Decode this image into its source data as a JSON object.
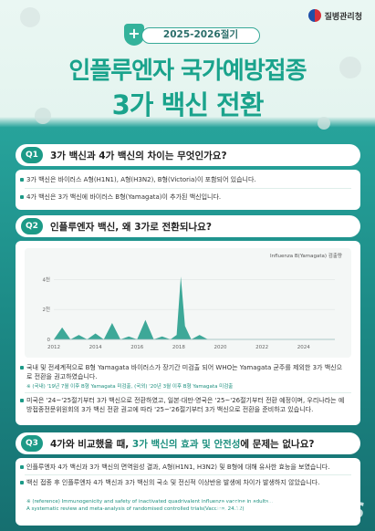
{
  "header": {
    "logo_text": "질병관리청",
    "season": "2025-2026절기",
    "title_line1": "인플루엔자 국가예방접종",
    "title_line2": "3가 백신 전환"
  },
  "q1": {
    "badge": "Q1",
    "question": "3가 백신과 4가 백신의 차이는 무엇인가요?",
    "bullets": [
      "3가 백신은 바이러스 A형(H1N1), A형(H3N2), B형(Victoria)이 포함되어 있습니다.",
      "4가 백신은 3가 백신에 바이러스 B형(Yamagata)이 추가된 백신입니다."
    ]
  },
  "q2": {
    "badge": "Q2",
    "question": "인플루엔자 백신, 왜 3가로 전환되나요?",
    "bullets": [
      "국내 및 전세계적으로 B형 Yamagata 바이러스가 장기간 미검출 되어 WHO는 Yamagata 균주를 제외한 3가 백신으로 전환을 권고하였습니다.",
      "미국은 '24~'25절기부터 3가 백신으로 전환하였고, 일본·대만·영국은 '25~'26절기부터 전환 예정이며, 우리나라는 예방접종전문위원회의 3가 백신 전환 권고에 따라 '25~'26절기부터 3가 백신으로 전환을 준비하고 있습니다."
    ],
    "note": "※ (국내) '19년 7월 이후 B형 Yamagata 미검출, (국외) '20년 3월 이후 B형 Yamagata 미검출"
  },
  "q3": {
    "badge": "Q3",
    "question_pre": "4가와 비교했을 때, ",
    "question_accent": "3가 백신의 효과 및 안전성",
    "question_post": "에 문제는 없나요?",
    "bullets": [
      "인플루엔자 4가 백신과 3가 백신의 면역원성 결과, A형(H1N1, H3N2) 및 B형에 대해 유사한 효능을 보였습니다.",
      "백신 접종 후 인플루엔자 4가 백신과 3가 백신의 국소 및 전신적 이상반응 발생에 차이가 발생하지 않았습니다."
    ],
    "note_line1": "※ (reference) Immunogenicity and safety of inactivated quadrivalent influenza vaccine in adults...",
    "note_line2": "A systematic review and meta-analysis of randomised controlled trials(Vaccine, 24.12)"
  },
  "chart_data": {
    "type": "area",
    "title": "",
    "legend": "Influenza B(Yamagata) 검출량",
    "xlabel": "",
    "ylabel": "",
    "x_ticks": [
      "2012",
      "2014",
      "2016",
      "2018",
      "2020",
      "2022",
      "2024"
    ],
    "y_ticks": [
      "0",
      "2천",
      "4천"
    ],
    "ylim": [
      0,
      5000
    ],
    "xlim": [
      2012,
      2025.5
    ],
    "color": "#1c9a87",
    "x": [
      2012.0,
      2012.4,
      2012.8,
      2013.2,
      2013.6,
      2014.0,
      2014.4,
      2014.8,
      2015.2,
      2015.6,
      2016.0,
      2016.4,
      2016.8,
      2017.2,
      2017.6,
      2017.9,
      2018.1,
      2018.3,
      2018.6,
      2019.0,
      2019.4,
      2019.6,
      2020.0,
      2024.9
    ],
    "values": [
      0,
      800,
      0,
      300,
      0,
      400,
      0,
      1100,
      0,
      200,
      0,
      1300,
      0,
      200,
      0,
      300,
      4200,
      900,
      0,
      300,
      0,
      0,
      0,
      0
    ]
  },
  "watermark": "STAR NEWS"
}
